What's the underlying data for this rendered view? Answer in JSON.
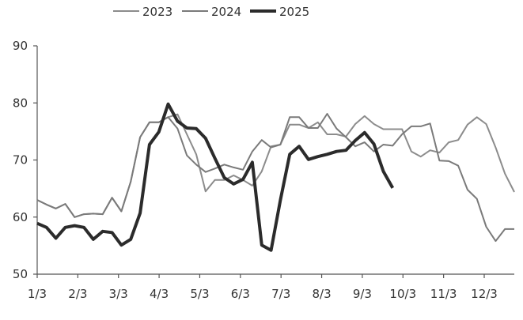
{
  "chart_data": {
    "type": "line",
    "title": "",
    "xlabel": "",
    "ylabel": "",
    "ylim": [
      50,
      90
    ],
    "yticks": [
      50,
      60,
      70,
      80,
      90
    ],
    "xtick_labels": [
      "1/3",
      "2/3",
      "3/3",
      "4/3",
      "5/3",
      "6/3",
      "7/3",
      "8/3",
      "9/3",
      "10/3",
      "11/3",
      "12/3"
    ],
    "grid": false,
    "legend_position": "top",
    "series": [
      {
        "name": "2023",
        "color": "#8c8c8c",
        "width": 2,
        "values": [
          63.0,
          62.2,
          61.5,
          62.3,
          60.0,
          60.5,
          60.6,
          60.5,
          63.4,
          61.0,
          66.2,
          74.0,
          76.6,
          76.6,
          77.5,
          78.0,
          74.5,
          71.0,
          64.5,
          66.5,
          66.5,
          67.3,
          66.5,
          65.5,
          68.0,
          72.4,
          72.7,
          76.2,
          76.2,
          75.6,
          76.6,
          74.5,
          74.5,
          74.1,
          76.3,
          77.7,
          76.3,
          75.4,
          75.4,
          75.4,
          71.5,
          70.6,
          71.7,
          71.3,
          73.1,
          73.5,
          76.2,
          77.5,
          76.3,
          72.2,
          67.6,
          64.4
        ]
      },
      {
        "name": "2024",
        "color": "#7a7a7a",
        "width": 2,
        "values": [
          63.0,
          62.2,
          61.5,
          62.3,
          60.0,
          60.5,
          60.6,
          60.5,
          63.4,
          61.0,
          66.2,
          74.0,
          76.6,
          76.6,
          77.5,
          75.5,
          70.8,
          69.2,
          67.9,
          68.5,
          69.2,
          68.7,
          68.3,
          71.5,
          73.5,
          72.2,
          72.7,
          77.5,
          77.5,
          75.6,
          75.6,
          78.1,
          75.5,
          74.0,
          72.4,
          73.1,
          71.5,
          72.7,
          72.5,
          74.5,
          75.9,
          75.9,
          76.4,
          69.9,
          69.8,
          69.0,
          64.8,
          63.2,
          58.3,
          55.8,
          57.9,
          57.9
        ]
      },
      {
        "name": "2025",
        "color": "#2b2b2b",
        "width": 4,
        "values": [
          58.9,
          58.2,
          56.3,
          58.2,
          58.5,
          58.2,
          56.1,
          57.5,
          57.3,
          55.1,
          56.1,
          60.7,
          72.7,
          74.9,
          79.8,
          76.8,
          75.6,
          75.5,
          73.8,
          70.3,
          66.9,
          65.8,
          66.6,
          69.6,
          55.1,
          54.2,
          63.0,
          71.0,
          72.4,
          70.1,
          70.6,
          71.0,
          71.5,
          71.7,
          73.4,
          74.8,
          72.8,
          68.0,
          65.1
        ]
      }
    ]
  }
}
